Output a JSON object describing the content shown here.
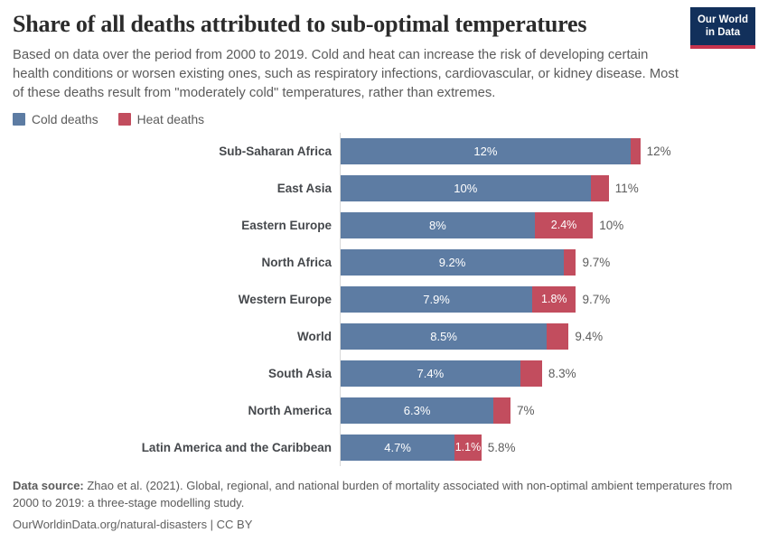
{
  "header": {
    "title": "Share of all deaths attributed to sub-optimal temperatures",
    "subtitle": "Based on data over the period from 2000 to 2019. Cold and heat can increase the risk of developing certain health conditions or worsen existing ones, such as respiratory infections, cardiovascular, or kidney disease. Most of these deaths result from \"moderately cold\" temperatures, rather than extremes.",
    "logo": {
      "line1": "Our World",
      "line2": "in Data"
    }
  },
  "brand_colors": {
    "logo_background": "#12305B",
    "logo_bar": "#C7334D"
  },
  "legend": [
    {
      "label": "Cold deaths",
      "color": "#5D7CA3"
    },
    {
      "label": "Heat deaths",
      "color": "#C24D5E"
    }
  ],
  "chart_data": {
    "type": "bar",
    "orientation": "horizontal",
    "stacked": true,
    "title": "Share of all deaths attributed to sub-optimal temperatures",
    "unit": "% of all deaths",
    "xlabel": "",
    "ylabel": "",
    "x_min": 0,
    "x_max_shown": 12.35,
    "grid": false,
    "legend_position": "top-left",
    "series_names": [
      "Cold deaths",
      "Heat deaths"
    ],
    "colors": {
      "cold": "#5D7CA3",
      "heat": "#C24D5E"
    },
    "rows": [
      {
        "region": "Sub-Saharan Africa",
        "cold": 11.95,
        "heat": 0.4,
        "total": 12.35,
        "cold_label": "12%",
        "heat_label": null,
        "total_label": "12%"
      },
      {
        "region": "East Asia",
        "cold": 10.3,
        "heat": 0.75,
        "total": 11.05,
        "cold_label": "10%",
        "heat_label": null,
        "total_label": "11%"
      },
      {
        "region": "Eastern Europe",
        "cold": 8.0,
        "heat": 2.4,
        "total": 10.4,
        "cold_label": "8%",
        "heat_label": "2.4%",
        "total_label": "10%"
      },
      {
        "region": "North Africa",
        "cold": 9.2,
        "heat": 0.5,
        "total": 9.7,
        "cold_label": "9.2%",
        "heat_label": null,
        "total_label": "9.7%"
      },
      {
        "region": "Western Europe",
        "cold": 7.9,
        "heat": 1.8,
        "total": 9.7,
        "cold_label": "7.9%",
        "heat_label": "1.8%",
        "total_label": "9.7%"
      },
      {
        "region": "World",
        "cold": 8.5,
        "heat": 0.9,
        "total": 9.4,
        "cold_label": "8.5%",
        "heat_label": null,
        "total_label": "9.4%"
      },
      {
        "region": "South Asia",
        "cold": 7.4,
        "heat": 0.9,
        "total": 8.3,
        "cold_label": "7.4%",
        "heat_label": null,
        "total_label": "8.3%"
      },
      {
        "region": "North America",
        "cold": 6.3,
        "heat": 0.7,
        "total": 7.0,
        "cold_label": "6.3%",
        "heat_label": null,
        "total_label": "7%"
      },
      {
        "region": "Latin America and the Caribbean",
        "cold": 4.7,
        "heat": 1.1,
        "total": 5.8,
        "cold_label": "4.7%",
        "heat_label": "1.1%",
        "total_label": "5.8%"
      }
    ]
  },
  "footer": {
    "source_label": "Data source:",
    "source_text": " Zhao et al. (2021). Global, regional, and national burden of mortality associated with non-optimal ambient temperatures from 2000 to 2019: a three-stage modelling study.",
    "link_text": "OurWorldinData.org/natural-disasters | CC BY"
  }
}
